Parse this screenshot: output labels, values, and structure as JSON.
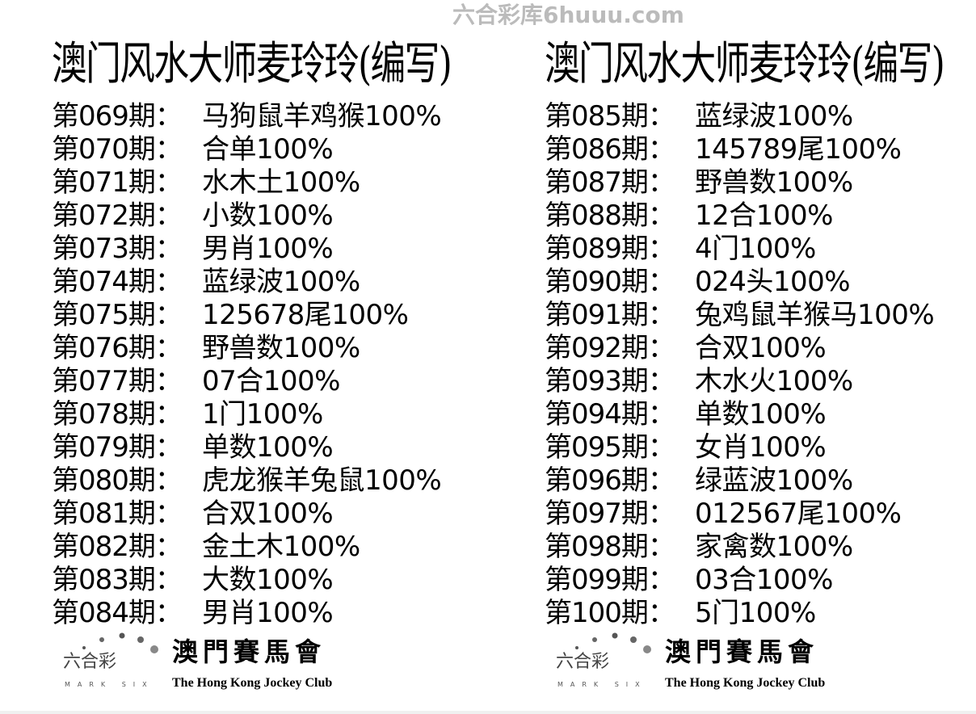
{
  "watermark": "六合彩库6huuu.com",
  "columns": [
    {
      "title": "澳门风水大师麦玲玲(编写)",
      "rows": [
        {
          "label": "第069期：",
          "value": "马狗鼠羊鸡猴100%"
        },
        {
          "label": "第070期：",
          "value": "合单100%"
        },
        {
          "label": "第071期：",
          "value": "水木土100%"
        },
        {
          "label": "第072期：",
          "value": "小数100%"
        },
        {
          "label": "第073期：",
          "value": "男肖100%"
        },
        {
          "label": "第074期：",
          "value": "蓝绿波100%"
        },
        {
          "label": "第075期：",
          "value": "125678尾100%"
        },
        {
          "label": "第076期：",
          "value": "野兽数100%"
        },
        {
          "label": "第077期：",
          "value": "07合100%"
        },
        {
          "label": "第078期：",
          "value": "1门100%"
        },
        {
          "label": "第079期：",
          "value": "单数100%"
        },
        {
          "label": "第080期：",
          "value": "虎龙猴羊兔鼠100%"
        },
        {
          "label": "第081期：",
          "value": "合双100%"
        },
        {
          "label": "第082期：",
          "value": "金土木100%"
        },
        {
          "label": "第083期：",
          "value": "大数100%"
        },
        {
          "label": "第084期：",
          "value": "男肖100%"
        }
      ]
    },
    {
      "title": "澳门风水大师麦玲玲(编写)",
      "rows": [
        {
          "label": "第085期：",
          "value": "蓝绿波100%"
        },
        {
          "label": "第086期：",
          "value": "145789尾100%"
        },
        {
          "label": "第087期：",
          "value": "野兽数100%"
        },
        {
          "label": "第088期：",
          "value": "12合100%"
        },
        {
          "label": "第089期：",
          "value": "4门100%"
        },
        {
          "label": "第090期：",
          "value": "024头100%"
        },
        {
          "label": "第091期：",
          "value": "兔鸡鼠羊猴马100%"
        },
        {
          "label": "第092期：",
          "value": "合双100%"
        },
        {
          "label": "第093期：",
          "value": "木水火100%"
        },
        {
          "label": "第094期：",
          "value": "单数100%"
        },
        {
          "label": "第095期：",
          "value": "女肖100%"
        },
        {
          "label": "第096期：",
          "value": "绿蓝波100%"
        },
        {
          "label": "第097期：",
          "value": "012567尾100%"
        },
        {
          "label": "第098期：",
          "value": "家禽数100%"
        },
        {
          "label": "第099期：",
          "value": "03合100%"
        },
        {
          "label": "第100期：",
          "value": "5门100%"
        }
      ]
    }
  ],
  "logo": {
    "mark_six_cn": "六合彩",
    "mark_six_en": "MARK SIX",
    "club_cn": "澳門賽馬會",
    "club_en": "The Hong Kong Jockey Club"
  }
}
